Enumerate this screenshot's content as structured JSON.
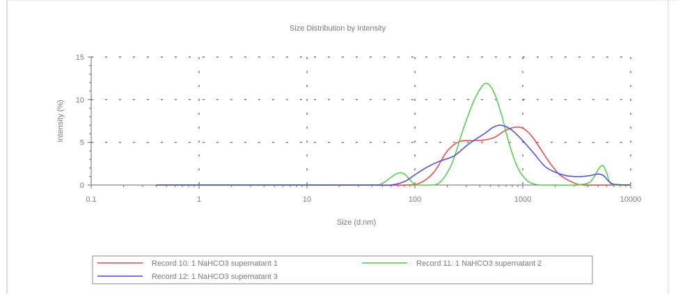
{
  "chart_data": {
    "type": "line",
    "title": "Size Distribution by Intensity",
    "xlabel": "Size (d.nm)",
    "ylabel": "Intensity (%)",
    "x_scale": "log",
    "xlim": [
      0.1,
      10000
    ],
    "ylim": [
      0,
      15
    ],
    "xticks": [
      0.1,
      1,
      10,
      100,
      1000,
      10000
    ],
    "xtick_labels": [
      "0.1",
      "1",
      "10",
      "100",
      "1000",
      "10000"
    ],
    "yticks": [
      0,
      5,
      10,
      15
    ],
    "ytick_labels": [
      "0",
      "5",
      "10",
      "15"
    ],
    "grid": true,
    "legend_position": "bottom",
    "series": [
      {
        "name": "Record 10: 1 NaHCO3 supernatant 1",
        "color": "#ef4040",
        "x": [
          0.4,
          1,
          10,
          40,
          80,
          110,
          150,
          200,
          260,
          350,
          450,
          550,
          650,
          750,
          900,
          1050,
          1250,
          1500,
          1800,
          2200,
          2700,
          3200,
          3800,
          5000,
          6500,
          8000,
          10000
        ],
        "y": [
          0,
          0,
          0,
          0,
          0,
          0.2,
          1.5,
          4.0,
          5.1,
          5.2,
          5.3,
          5.6,
          6.2,
          6.6,
          6.8,
          6.5,
          5.5,
          4.0,
          2.5,
          1.2,
          0.5,
          0.1,
          0,
          0,
          0,
          0,
          0
        ]
      },
      {
        "name": "Record 11: 1 NaHCO3 supernatant 2",
        "color": "#4ccc4c",
        "x": [
          0.4,
          1,
          10,
          40,
          50,
          60,
          70,
          80,
          90,
          100,
          130,
          170,
          220,
          280,
          350,
          420,
          460,
          500,
          560,
          650,
          750,
          900,
          1100,
          1300,
          1500,
          2000,
          3000,
          4000,
          4500,
          5000,
          5500,
          6000,
          6500,
          8000,
          10000
        ],
        "y": [
          0,
          0,
          0,
          0,
          0.2,
          0.9,
          1.4,
          1.3,
          0.6,
          0.1,
          0,
          0.3,
          2.5,
          6.5,
          9.8,
          11.6,
          11.9,
          11.6,
          10.4,
          7.8,
          4.8,
          2.0,
          0.5,
          0.1,
          0,
          0,
          0,
          0.2,
          0.8,
          1.8,
          2.3,
          1.4,
          0.2,
          0,
          0
        ]
      },
      {
        "name": "Record 12: 1 NaHCO3 supernatant 3",
        "color": "#4a4ae0",
        "x": [
          0.4,
          1,
          10,
          40,
          60,
          80,
          100,
          130,
          170,
          230,
          300,
          380,
          450,
          520,
          600,
          680,
          760,
          850,
          1000,
          1250,
          1600,
          2000,
          2500,
          3000,
          3500,
          4200,
          5000,
          5600,
          6200,
          7000,
          10000
        ],
        "y": [
          0,
          0,
          0,
          0,
          0,
          0.4,
          1.2,
          2.1,
          2.8,
          3.4,
          4.6,
          5.5,
          6.1,
          6.7,
          7.0,
          6.9,
          6.6,
          6.1,
          5.2,
          3.8,
          2.2,
          1.5,
          1.1,
          1.0,
          1.0,
          1.1,
          1.3,
          1.1,
          0.5,
          0.1,
          0
        ]
      }
    ]
  }
}
